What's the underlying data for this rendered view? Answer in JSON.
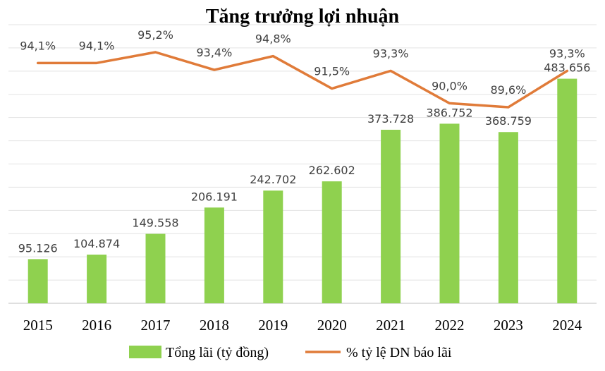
{
  "chart_data": {
    "type": "bar",
    "title": "Tăng trưởng lợi nhuận",
    "categories": [
      "2015",
      "2016",
      "2017",
      "2018",
      "2019",
      "2020",
      "2021",
      "2022",
      "2023",
      "2024"
    ],
    "series": [
      {
        "name": "Tổng lãi (tỷ đồng)",
        "type": "bar",
        "color": "#8fd14f",
        "values": [
          95126,
          104874,
          149558,
          206191,
          242702,
          262602,
          373728,
          386752,
          368759,
          483656
        ],
        "labels": [
          "95.126",
          "104.874",
          "149.558",
          "206.191",
          "242.702",
          "262.602",
          "373.728",
          "386.752",
          "368.759",
          "483.656"
        ]
      },
      {
        "name": "% tỷ lệ DN báo lãi",
        "type": "line",
        "color": "#e07b39",
        "values": [
          94.1,
          94.1,
          95.2,
          93.4,
          94.8,
          91.5,
          93.3,
          90.0,
          89.6,
          93.3
        ],
        "labels": [
          "94,1%",
          "94,1%",
          "95,2%",
          "93,4%",
          "94,8%",
          "91,5%",
          "93,3%",
          "90,0%",
          "89,6%",
          "93,3%"
        ]
      }
    ],
    "grid": true,
    "legend": "bottom"
  }
}
